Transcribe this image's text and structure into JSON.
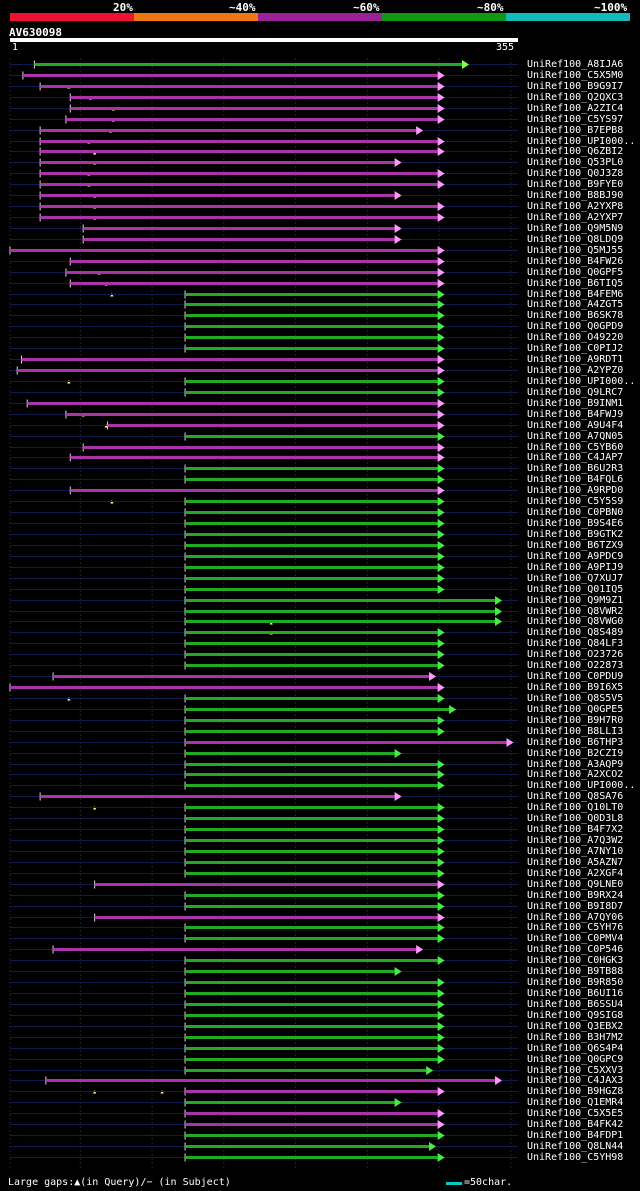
{
  "legend": {
    "colors": [
      "#ee1133",
      "#ee7711",
      "#992299",
      "#119911",
      "#11bbbb"
    ],
    "labels": [
      "20%",
      "~40%",
      "~60%",
      "~80%",
      "~100%"
    ]
  },
  "query": {
    "id": "AV630098",
    "start": "1",
    "end": "355"
  },
  "footer": {
    "text": "Large gaps:▲(in Query)/− (in Subject)",
    "scale": "=50char."
  },
  "chart_data": {
    "type": "alignment",
    "query_length": 355,
    "hits": [
      {
        "name": "UniRef100_A8IJA6",
        "s": 18,
        "e": 316,
        "c": "g",
        "tri": "y",
        "m": []
      },
      {
        "name": "UniRef100_C5X5M0",
        "s": 10,
        "e": 299,
        "c": "p",
        "tri": "w",
        "m": [
          42
        ]
      },
      {
        "name": "UniRef100_B9G9I7",
        "s": 22,
        "e": 299,
        "c": "p",
        "tri": "w",
        "m": [
          57
        ]
      },
      {
        "name": "UniRef100_Q2QXC3",
        "s": 43,
        "e": 299,
        "c": "p",
        "tri": "w",
        "m": [
          73
        ]
      },
      {
        "name": "UniRef100_A2ZIC4",
        "s": 43,
        "e": 299,
        "c": "p",
        "tri": "w",
        "m": [
          73
        ]
      },
      {
        "name": "UniRef100_C5YS97",
        "s": 40,
        "e": 299,
        "c": "p",
        "tri": "w",
        "m": [
          71
        ]
      },
      {
        "name": "UniRef100_B7EPB8",
        "s": 22,
        "e": 284,
        "c": "p",
        "tri": "w",
        "m": [
          56
        ]
      },
      {
        "name": "UniRef100_UPI000..",
        "s": 22,
        "e": 299,
        "c": "p",
        "tri": "w",
        "m": [
          60
        ]
      },
      {
        "name": "UniRef100_Q6ZBI2",
        "s": 22,
        "e": 299,
        "c": "p",
        "tri": "w",
        "m": [
          60
        ]
      },
      {
        "name": "UniRef100_Q53PL0",
        "s": 22,
        "e": 269,
        "c": "p",
        "tri": "w",
        "m": [
          56
        ]
      },
      {
        "name": "UniRef100_Q0J3Z8",
        "s": 22,
        "e": 299,
        "c": "p",
        "tri": "w",
        "m": [
          56
        ]
      },
      {
        "name": "UniRef100_B9FYE0",
        "s": 22,
        "e": 299,
        "c": "p",
        "tri": "w",
        "m": [
          60
        ]
      },
      {
        "name": "UniRef100_B8BJ90",
        "s": 22,
        "e": 269,
        "c": "p",
        "tri": "w",
        "m": [
          60
        ]
      },
      {
        "name": "UniRef100_A2YXP8",
        "s": 22,
        "e": 299,
        "c": "p",
        "tri": "w",
        "m": [
          60
        ]
      },
      {
        "name": "UniRef100_A2YXP7",
        "s": 22,
        "e": 299,
        "c": "p",
        "tri": "w",
        "m": []
      },
      {
        "name": "UniRef100_Q9M5N9",
        "s": 52,
        "e": 269,
        "c": "p",
        "tri": "w",
        "m": []
      },
      {
        "name": "UniRef100_Q8LDQ9",
        "s": 52,
        "e": 269,
        "c": "p",
        "tri": "w",
        "m": []
      },
      {
        "name": "UniRef100_Q5MJ55",
        "s": 1,
        "e": 299,
        "c": "p",
        "tri": "w",
        "m": []
      },
      {
        "name": "UniRef100_B4FW26",
        "s": 43,
        "e": 299,
        "c": "p",
        "tri": "w",
        "m": [
          63
        ]
      },
      {
        "name": "UniRef100_Q0GPF5",
        "s": 40,
        "e": 299,
        "c": "p",
        "tri": "w",
        "m": [
          68
        ]
      },
      {
        "name": "UniRef100_B6TIQ5",
        "s": 43,
        "e": 299,
        "c": "p",
        "tri": "w",
        "m": [
          72
        ]
      },
      {
        "name": "UniRef100_B4FEM6",
        "s": 123,
        "e": 299,
        "c": "g",
        "tri": "g",
        "m": []
      },
      {
        "name": "UniRef100_A4ZGT5",
        "s": 123,
        "e": 299,
        "c": "g",
        "tri": "g",
        "m": []
      },
      {
        "name": "UniRef100_B6SK78",
        "s": 123,
        "e": 299,
        "c": "g",
        "tri": "g",
        "m": []
      },
      {
        "name": "UniRef100_Q0GPD9",
        "s": 123,
        "e": 299,
        "c": "g",
        "tri": "g",
        "m": []
      },
      {
        "name": "UniRef100_O49220",
        "s": 123,
        "e": 299,
        "c": "g",
        "tri": "g",
        "m": []
      },
      {
        "name": "UniRef100_C0PIJ2",
        "s": 123,
        "e": 299,
        "c": "g",
        "tri": "g",
        "m": []
      },
      {
        "name": "UniRef100_A9RDT1",
        "s": 9,
        "e": 299,
        "c": "p",
        "tri": "w",
        "m": []
      },
      {
        "name": "UniRef100_A2YPZ0",
        "s": 6,
        "e": 299,
        "c": "p",
        "tri": "w",
        "m": [
          42
        ]
      },
      {
        "name": "UniRef100_UPI000..",
        "s": 123,
        "e": 299,
        "c": "g",
        "tri": "g",
        "m": []
      },
      {
        "name": "UniRef100_Q9LRC7",
        "s": 123,
        "e": 299,
        "c": "g",
        "tri": "g",
        "m": []
      },
      {
        "name": "UniRef100_B9INM1",
        "s": 13,
        "e": 299,
        "c": "p",
        "tri": "w",
        "m": [
          52
        ]
      },
      {
        "name": "UniRef100_B4FWJ9",
        "s": 40,
        "e": 299,
        "c": "p",
        "tri": "w",
        "m": [
          68
        ]
      },
      {
        "name": "UniRef100_A9U4F4",
        "s": 69,
        "e": 299,
        "c": "p",
        "tri": "w",
        "m": []
      },
      {
        "name": "UniRef100_A7QN05",
        "s": 123,
        "e": 299,
        "c": "g",
        "tri": "g",
        "m": []
      },
      {
        "name": "UniRef100_C5YB60",
        "s": 52,
        "e": 299,
        "c": "p",
        "tri": "w",
        "m": []
      },
      {
        "name": "UniRef100_C4JAP7",
        "s": 43,
        "e": 299,
        "c": "p",
        "tri": "w",
        "m": []
      },
      {
        "name": "UniRef100_B6U2R3",
        "s": 123,
        "e": 299,
        "c": "g",
        "tri": "g",
        "m": []
      },
      {
        "name": "UniRef100_B4FQL6",
        "s": 123,
        "e": 299,
        "c": "g",
        "tri": "g",
        "m": []
      },
      {
        "name": "UniRef100_A9RPD0",
        "s": 43,
        "e": 299,
        "c": "p",
        "tri": "w",
        "m": [
          72
        ]
      },
      {
        "name": "UniRef100_C5Y5S9",
        "s": 123,
        "e": 299,
        "c": "g",
        "tri": "g",
        "m": []
      },
      {
        "name": "UniRef100_C0PBN0",
        "s": 123,
        "e": 299,
        "c": "g",
        "tri": "g",
        "m": []
      },
      {
        "name": "UniRef100_B9S4E6",
        "s": 123,
        "e": 299,
        "c": "g",
        "tri": "g",
        "m": []
      },
      {
        "name": "UniRef100_B9GTK2",
        "s": 123,
        "e": 299,
        "c": "g",
        "tri": "g",
        "m": []
      },
      {
        "name": "UniRef100_B6TZX9",
        "s": 123,
        "e": 299,
        "c": "g",
        "tri": "g",
        "m": []
      },
      {
        "name": "UniRef100_A9PDC9",
        "s": 123,
        "e": 299,
        "c": "g",
        "tri": "g",
        "m": []
      },
      {
        "name": "UniRef100_A9PIJ9",
        "s": 123,
        "e": 299,
        "c": "g",
        "tri": "g",
        "m": []
      },
      {
        "name": "UniRef100_Q7XUJ7",
        "s": 123,
        "e": 299,
        "c": "g",
        "tri": "g",
        "m": []
      },
      {
        "name": "UniRef100_Q01IQ5",
        "s": 123,
        "e": 299,
        "c": "g",
        "tri": "g",
        "m": []
      },
      {
        "name": "UniRef100_Q9M9Z1",
        "s": 123,
        "e": 339,
        "c": "g",
        "tri": "g",
        "m": []
      },
      {
        "name": "UniRef100_Q8VWR2",
        "s": 123,
        "e": 339,
        "c": "g",
        "tri": "g",
        "m": [
          183
        ]
      },
      {
        "name": "UniRef100_Q8VWG0",
        "s": 123,
        "e": 339,
        "c": "g",
        "tri": "g",
        "m": [
          183
        ]
      },
      {
        "name": "UniRef100_Q8S489",
        "s": 123,
        "e": 299,
        "c": "g",
        "tri": "g",
        "m": []
      },
      {
        "name": "UniRef100_Q84LF3",
        "s": 123,
        "e": 299,
        "c": "g",
        "tri": "g",
        "m": []
      },
      {
        "name": "UniRef100_O23726",
        "s": 123,
        "e": 299,
        "c": "g",
        "tri": "g",
        "m": []
      },
      {
        "name": "UniRef100_O22873",
        "s": 123,
        "e": 299,
        "c": "g",
        "tri": "g",
        "m": []
      },
      {
        "name": "UniRef100_C0PDU9",
        "s": 31,
        "e": 293,
        "c": "p",
        "tri": "w",
        "m": []
      },
      {
        "name": "UniRef100_B9I6X5",
        "s": 1,
        "e": 299,
        "c": "p",
        "tri": "w",
        "m": [
          42
        ]
      },
      {
        "name": "UniRef100_Q8S5V5",
        "s": 123,
        "e": 299,
        "c": "g",
        "tri": "g",
        "m": []
      },
      {
        "name": "UniRef100_Q0GPE5",
        "s": 123,
        "e": 307,
        "c": "g",
        "tri": "g",
        "m": []
      },
      {
        "name": "UniRef100_B9H7R0",
        "s": 123,
        "e": 299,
        "c": "g",
        "tri": "g",
        "m": []
      },
      {
        "name": "UniRef100_B8LLI3",
        "s": 123,
        "e": 299,
        "c": "g",
        "tri": "g",
        "m": []
      },
      {
        "name": "UniRef100_B6THP3",
        "s": 123,
        "e": 347,
        "c": "p",
        "tri": "w",
        "m": []
      },
      {
        "name": "UniRef100_B2CZI9",
        "s": 123,
        "e": 269,
        "c": "g",
        "tri": "g",
        "m": []
      },
      {
        "name": "UniRef100_A3AQP9",
        "s": 123,
        "e": 299,
        "c": "g",
        "tri": "g",
        "m": []
      },
      {
        "name": "UniRef100_A2XCO2",
        "s": 123,
        "e": 299,
        "c": "g",
        "tri": "g",
        "m": []
      },
      {
        "name": "UniRef100_UPI000..",
        "s": 123,
        "e": 299,
        "c": "g",
        "tri": "g",
        "m": []
      },
      {
        "name": "UniRef100_Q8SA76",
        "s": 22,
        "e": 269,
        "c": "p",
        "tri": "w",
        "m": [
          60
        ]
      },
      {
        "name": "UniRef100_Q10LT0",
        "s": 123,
        "e": 299,
        "c": "g",
        "tri": "g",
        "m": []
      },
      {
        "name": "UniRef100_Q0D3L8",
        "s": 123,
        "e": 299,
        "c": "g",
        "tri": "g",
        "m": []
      },
      {
        "name": "UniRef100_B4F7X2",
        "s": 123,
        "e": 299,
        "c": "g",
        "tri": "g",
        "m": []
      },
      {
        "name": "UniRef100_A7Q3W2",
        "s": 123,
        "e": 299,
        "c": "g",
        "tri": "g",
        "m": []
      },
      {
        "name": "UniRef100_A7NY10",
        "s": 123,
        "e": 299,
        "c": "g",
        "tri": "g",
        "m": []
      },
      {
        "name": "UniRef100_A5AZN7",
        "s": 123,
        "e": 299,
        "c": "g",
        "tri": "g",
        "m": []
      },
      {
        "name": "UniRef100_A2XGF4",
        "s": 123,
        "e": 299,
        "c": "g",
        "tri": "g",
        "m": []
      },
      {
        "name": "UniRef100_Q9LNE0",
        "s": 60,
        "e": 299,
        "c": "p",
        "tri": "w",
        "m": []
      },
      {
        "name": "UniRef100_B9RX24",
        "s": 123,
        "e": 299,
        "c": "g",
        "tri": "g",
        "m": []
      },
      {
        "name": "UniRef100_B9I8D7",
        "s": 123,
        "e": 299,
        "c": "g",
        "tri": "g",
        "m": []
      },
      {
        "name": "UniRef100_A7QY06",
        "s": 60,
        "e": 299,
        "c": "p",
        "tri": "w",
        "m": []
      },
      {
        "name": "UniRef100_C5YH76",
        "s": 123,
        "e": 299,
        "c": "g",
        "tri": "g",
        "m": []
      },
      {
        "name": "UniRef100_C0PMV4",
        "s": 123,
        "e": 299,
        "c": "g",
        "tri": "g",
        "m": []
      },
      {
        "name": "UniRef100_C0P546",
        "s": 31,
        "e": 284,
        "c": "p",
        "tri": "w",
        "m": []
      },
      {
        "name": "UniRef100_C0HGK3",
        "s": 123,
        "e": 299,
        "c": "g",
        "tri": "g",
        "m": []
      },
      {
        "name": "UniRef100_B9TB88",
        "s": 123,
        "e": 269,
        "c": "g",
        "tri": "g",
        "m": []
      },
      {
        "name": "UniRef100_B9R850",
        "s": 123,
        "e": 299,
        "c": "g",
        "tri": "g",
        "m": []
      },
      {
        "name": "UniRef100_B6UI16",
        "s": 123,
        "e": 299,
        "c": "g",
        "tri": "g",
        "m": []
      },
      {
        "name": "UniRef100_B6SSU4",
        "s": 123,
        "e": 299,
        "c": "g",
        "tri": "g",
        "m": []
      },
      {
        "name": "UniRef100_Q9SIG8",
        "s": 123,
        "e": 299,
        "c": "g",
        "tri": "g",
        "m": []
      },
      {
        "name": "UniRef100_Q3EBX2",
        "s": 123,
        "e": 299,
        "c": "g",
        "tri": "g",
        "m": []
      },
      {
        "name": "UniRef100_B3H7M2",
        "s": 123,
        "e": 299,
        "c": "g",
        "tri": "g",
        "m": []
      },
      {
        "name": "UniRef100_Q6S4P4",
        "s": 123,
        "e": 299,
        "c": "g",
        "tri": "g",
        "m": []
      },
      {
        "name": "UniRef100_Q0GPC9",
        "s": 123,
        "e": 299,
        "c": "g",
        "tri": "g",
        "m": []
      },
      {
        "name": "UniRef100_C5XXV3",
        "s": 123,
        "e": 291,
        "c": "g",
        "tri": "g",
        "m": []
      },
      {
        "name": "UniRef100_C4JAX3",
        "s": 26,
        "e": 339,
        "c": "p",
        "tri": "w",
        "m": [
          60,
          107
        ]
      },
      {
        "name": "UniRef100_B9HGZ8",
        "s": 123,
        "e": 299,
        "c": "p",
        "tri": "w",
        "m": []
      },
      {
        "name": "UniRef100_Q1EMR4",
        "s": 123,
        "e": 269,
        "c": "g",
        "tri": "g",
        "m": []
      },
      {
        "name": "UniRef100_C5X5E5",
        "s": 123,
        "e": 299,
        "c": "p",
        "tri": "w",
        "m": []
      },
      {
        "name": "UniRef100_B4FK42",
        "s": 123,
        "e": 299,
        "c": "p",
        "tri": "w",
        "m": []
      },
      {
        "name": "UniRef100_B4FDP1",
        "s": 123,
        "e": 299,
        "c": "g",
        "tri": "g",
        "m": []
      },
      {
        "name": "UniRef100_Q8LN44",
        "s": 123,
        "e": 293,
        "c": "g",
        "tri": "g",
        "m": []
      },
      {
        "name": "UniRef100_C5YH98",
        "s": 123,
        "e": 299,
        "c": "g",
        "tri": "g",
        "m": []
      }
    ]
  }
}
